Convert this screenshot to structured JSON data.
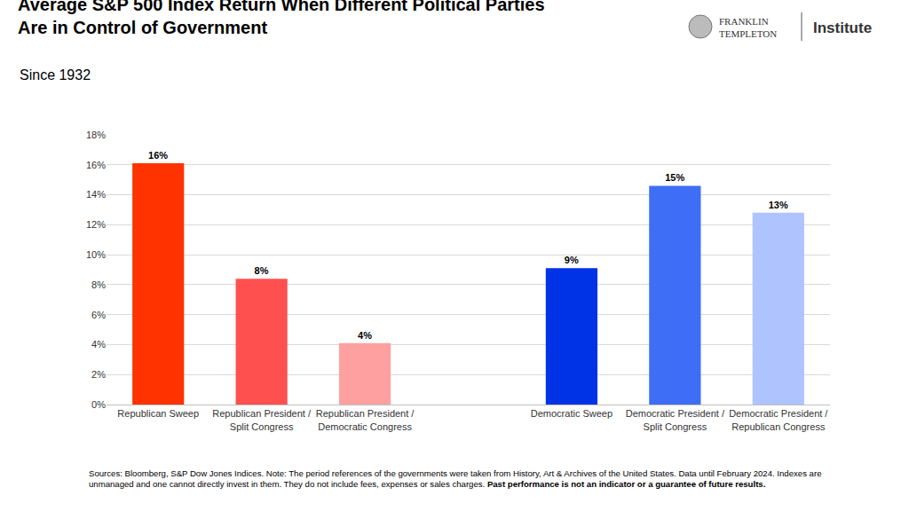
{
  "chart_data": {
    "type": "bar",
    "title": "Average S&P 500 Index Return When Different Political Parties\nAre in Control of Government",
    "subtitle": "Since 1932",
    "categories": [
      "Republican Sweep",
      "Republican President / Split Congress",
      "Republican President / Democratic Congress",
      null,
      "Democratic Sweep",
      "Democratic President / Split Congress",
      "Democratic President / Republican Congress"
    ],
    "values": [
      16.1,
      8.4,
      4.1,
      null,
      9.1,
      14.6,
      12.8
    ],
    "value_labels": [
      "16%",
      "8%",
      "4%",
      null,
      "9%",
      "15%",
      "13%"
    ],
    "colors": [
      "#ff3300",
      "#ff5050",
      "#ffa0a0",
      null,
      "#0033e6",
      "#3d6ef5",
      "#afc3ff"
    ],
    "ylim": [
      0,
      18
    ],
    "yticks": [
      {
        "value": 0,
        "label": "0%"
      },
      {
        "value": 2,
        "label": "2%"
      },
      {
        "value": 4,
        "label": "4%"
      },
      {
        "value": 6,
        "label": "6%"
      },
      {
        "value": 8,
        "label": "8%"
      },
      {
        "value": 10,
        "label": "10%"
      },
      {
        "value": 12,
        "label": "12%"
      },
      {
        "value": 14,
        "label": "14%"
      },
      {
        "value": 16,
        "label": "16%"
      },
      {
        "value": 18,
        "label": "18%"
      }
    ],
    "grid": true,
    "data_labels": true,
    "annotations": [
      "FRANKLIN\nTEMPLETON",
      "Institute",
      "Sources: Bloomberg, S&P Dow Jones Indices. Note: The period references of the governments were taken from History, Art & Archives of the United States. Data until February 2024. Indexes are\nunmanaged and one cannot directly invest in them. They do not include fees, expenses or sales charges.",
      "Past performance is not an indicator or a guarantee of future results."
    ]
  }
}
